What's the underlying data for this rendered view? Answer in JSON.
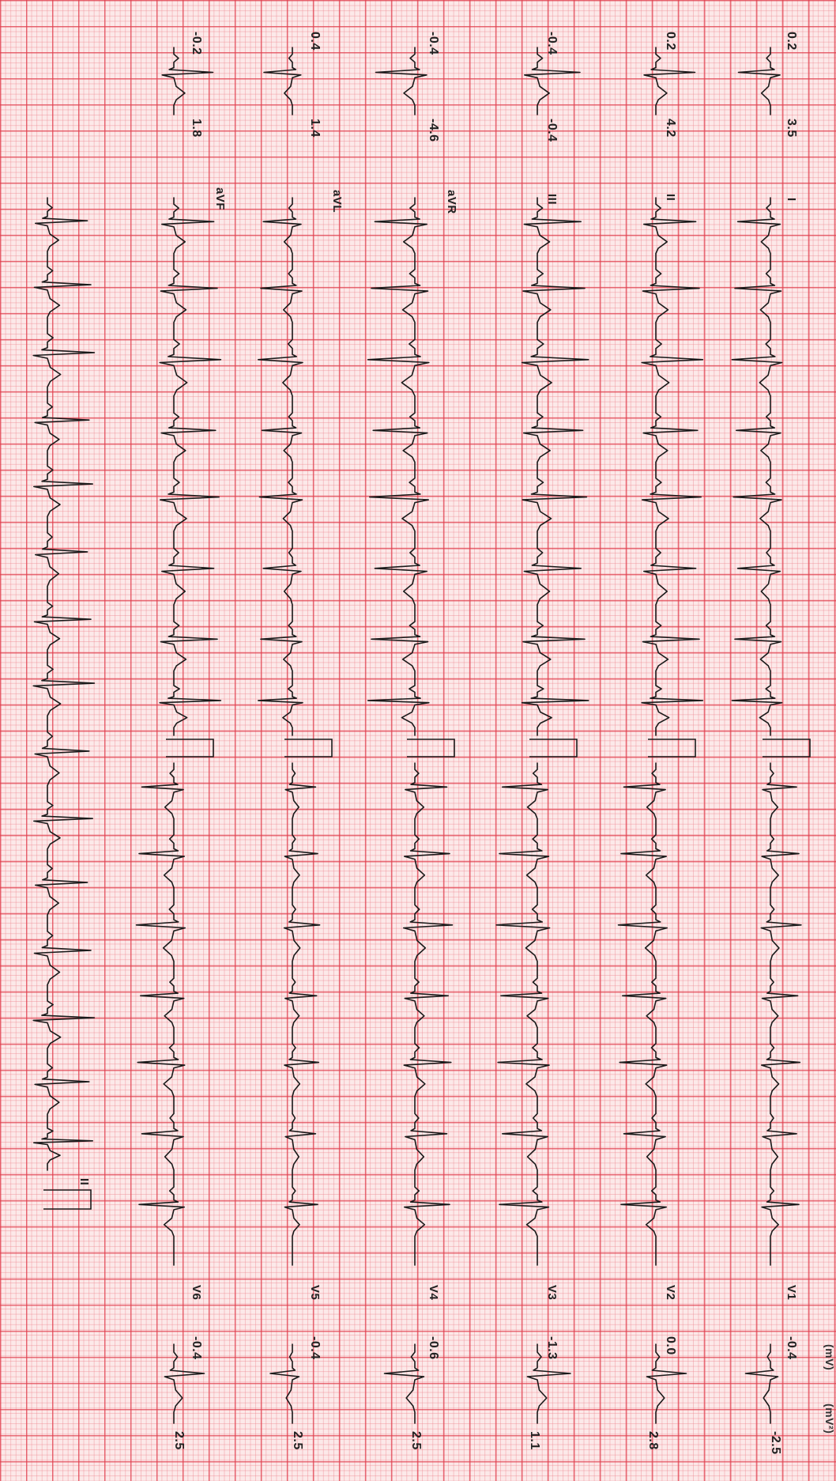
{
  "header_fragment": "(mV)",
  "header_fragment_right": "(mV²)",
  "leads": [
    {
      "name": "I",
      "min": "0.2",
      "max": "3.5"
    },
    {
      "name": "II",
      "min": "0.2",
      "max": "4.2"
    },
    {
      "name": "III",
      "min": "-0.4",
      "max": "-0.4"
    },
    {
      "name": "aVR",
      "min": "-0.4",
      "max": "-4.6"
    },
    {
      "name": "aVL",
      "min": "0.4",
      "max": "1.4"
    },
    {
      "name": "aVF",
      "min": "-0.2",
      "max": "1.8"
    },
    {
      "name": "V1",
      "min": "-0.4",
      "max": "-2.5"
    },
    {
      "name": "V2",
      "min": "0.0",
      "max": "2.8"
    },
    {
      "name": "V3",
      "min": "-1.3",
      "max": "1.1"
    },
    {
      "name": "V4",
      "min": "-0.6",
      "max": "2.5"
    },
    {
      "name": "V5",
      "min": "-0.4",
      "max": "2.5"
    },
    {
      "name": "V6",
      "min": "-0.4",
      "max": "2.5"
    }
  ],
  "rhythm_strip": {
    "name": "II"
  }
}
